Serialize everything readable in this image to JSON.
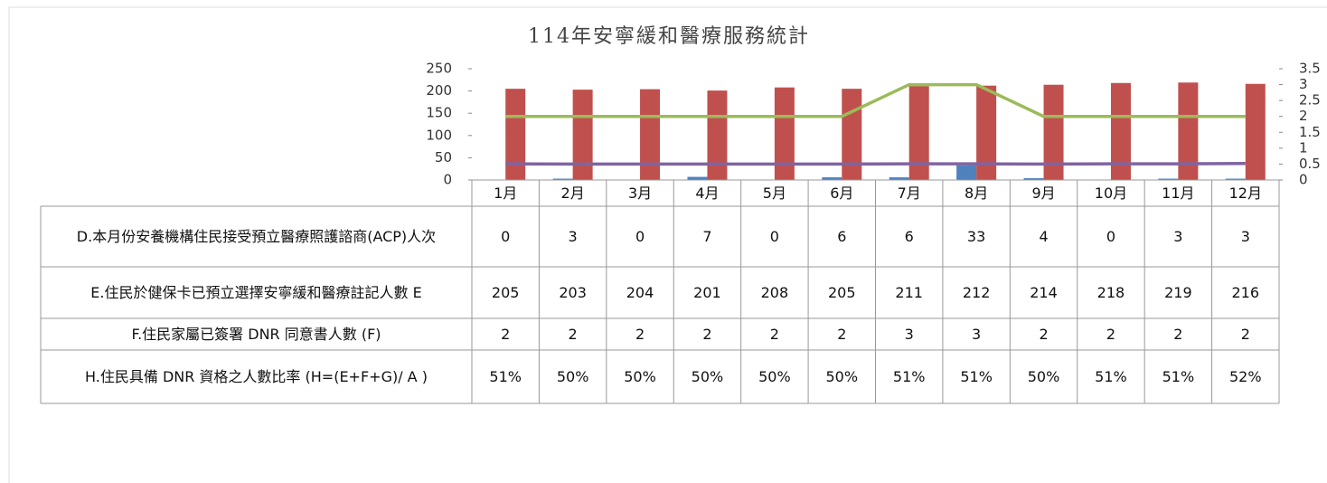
{
  "chart_data": {
    "type": "bar-line",
    "title": "114年安寧緩和醫療服務統計",
    "categories": [
      "1月",
      "2月",
      "3月",
      "4月",
      "5月",
      "6月",
      "7月",
      "8月",
      "9月",
      "10月",
      "11月",
      "12月"
    ],
    "ylim": [
      0,
      250
    ],
    "yticks": [
      0,
      50,
      100,
      150,
      200,
      250
    ],
    "y2lim": [
      0,
      3.5
    ],
    "y2ticks": [
      0,
      0.5,
      1,
      1.5,
      2,
      2.5,
      3,
      3.5
    ],
    "series": [
      {
        "name": "D.本月份安養機構住民接受預立醫療照護諮商(ACP)人次",
        "type": "bar",
        "color": "#4f81bd",
        "values": [
          0,
          3,
          0,
          7,
          0,
          6,
          6,
          33,
          4,
          0,
          3,
          3
        ]
      },
      {
        "name": "E.住民於健保卡已預立選擇安寧緩和醫療註記人數 E",
        "type": "bar",
        "color": "#c0504d",
        "values": [
          205,
          203,
          204,
          201,
          208,
          205,
          211,
          212,
          214,
          218,
          219,
          216
        ]
      },
      {
        "name": "F.住民家屬已簽署 DNR 同意書人數 (F)",
        "type": "line",
        "axis": "y2",
        "color": "#9bbb59",
        "values": [
          2,
          2,
          2,
          2,
          2,
          2,
          3,
          3,
          2,
          2,
          2,
          2
        ]
      },
      {
        "name": "H.住民具備 DNR 資格之人數比率 (H=(E+F+G)/ A )",
        "type": "line",
        "axis": "y2",
        "color": "#8064a2",
        "values": [
          0.51,
          0.5,
          0.5,
          0.5,
          0.5,
          0.5,
          0.51,
          0.51,
          0.5,
          0.51,
          0.51,
          0.52
        ],
        "value_labels": [
          "51%",
          "50%",
          "50%",
          "50%",
          "50%",
          "50%",
          "51%",
          "51%",
          "50%",
          "51%",
          "51%",
          "52%"
        ]
      }
    ]
  }
}
